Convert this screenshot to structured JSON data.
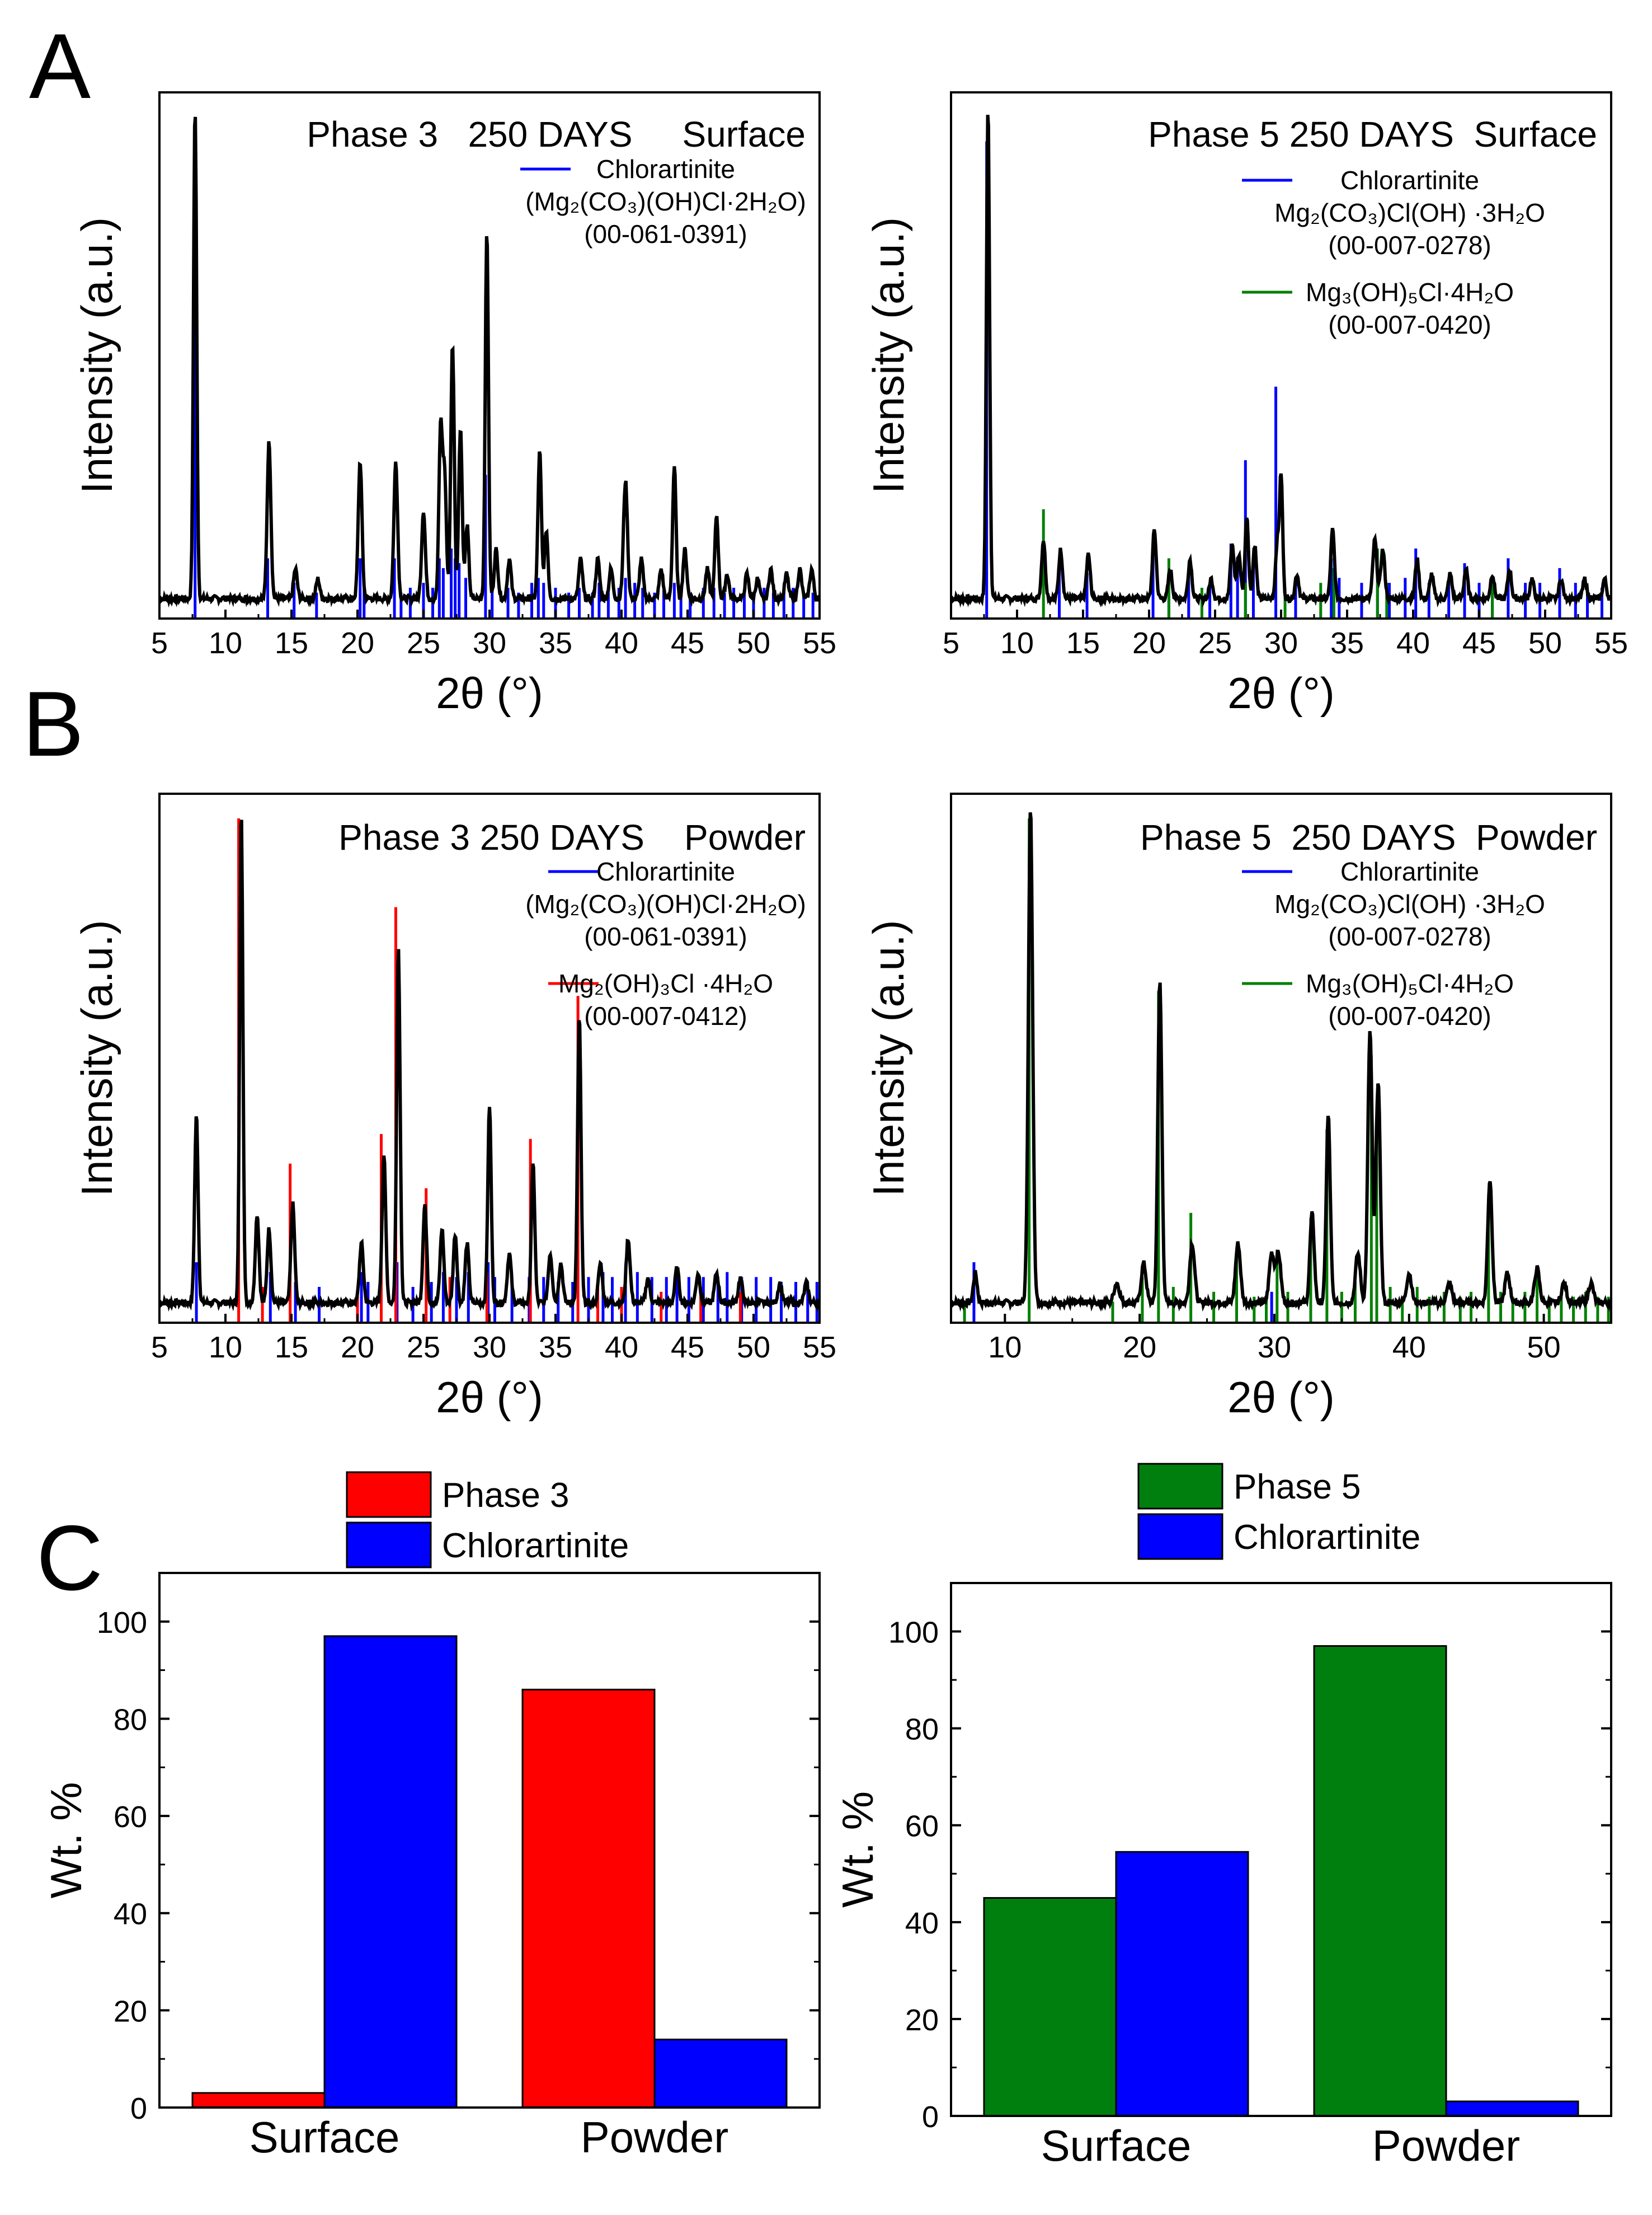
{
  "panel_letters": [
    "A",
    "B",
    "C"
  ],
  "colors": {
    "pattern": "#000000",
    "chlorartinite": "#0000ff",
    "phase3": "#ff0000",
    "phase5": "#008000",
    "bar_phase5": "#007f0e"
  },
  "chart_data": [
    {
      "id": "A-left",
      "type": "line",
      "title": "Phase 3   250 DAYS     Surface",
      "xlabel": "2θ (°)",
      "ylabel": "Intensity (a.u.)",
      "xlim": [
        5,
        55
      ],
      "ylim": [
        0,
        1.05
      ],
      "xticks": [
        5,
        10,
        15,
        20,
        25,
        30,
        35,
        40,
        45,
        50,
        55
      ],
      "legend": [
        {
          "name": "Chlorartinite",
          "lines": [
            "Chlorartinite",
            "(Mg₂(CO₃)(OH)Cl·2H₂O)",
            "(00-061-0391)"
          ],
          "color": "#0000ff"
        }
      ],
      "peaks": [
        [
          7.7,
          1.0,
          0.12
        ],
        [
          13.3,
          0.32,
          0.14
        ],
        [
          15.3,
          0.06,
          0.14
        ],
        [
          17.0,
          0.04,
          0.14
        ],
        [
          20.2,
          0.28,
          0.14
        ],
        [
          22.9,
          0.28,
          0.14
        ],
        [
          25.0,
          0.18,
          0.14
        ],
        [
          26.3,
          0.35,
          0.13
        ],
        [
          26.6,
          0.25,
          0.13
        ],
        [
          27.2,
          0.52,
          0.13
        ],
        [
          27.8,
          0.35,
          0.13
        ],
        [
          28.3,
          0.15,
          0.13
        ],
        [
          29.8,
          0.75,
          0.12
        ],
        [
          30.5,
          0.1,
          0.14
        ],
        [
          31.5,
          0.08,
          0.14
        ],
        [
          33.8,
          0.3,
          0.13
        ],
        [
          34.3,
          0.14,
          0.13
        ],
        [
          36.9,
          0.08,
          0.14
        ],
        [
          38.2,
          0.08,
          0.14
        ],
        [
          39.2,
          0.06,
          0.14
        ],
        [
          40.3,
          0.24,
          0.15
        ],
        [
          41.5,
          0.08,
          0.14
        ],
        [
          43.0,
          0.06,
          0.14
        ],
        [
          44.0,
          0.27,
          0.13
        ],
        [
          44.8,
          0.1,
          0.14
        ],
        [
          46.5,
          0.06,
          0.14
        ],
        [
          47.2,
          0.17,
          0.13
        ],
        [
          48.0,
          0.05,
          0.14
        ],
        [
          49.5,
          0.05,
          0.14
        ],
        [
          50.3,
          0.04,
          0.14
        ],
        [
          51.3,
          0.06,
          0.14
        ],
        [
          52.5,
          0.05,
          0.14
        ],
        [
          53.5,
          0.06,
          0.14
        ],
        [
          54.4,
          0.06,
          0.14
        ]
      ],
      "reference_lines": [
        {
          "name": "Chlorartinite",
          "color": "#0000ff",
          "x": [
            7.7,
            13.2,
            15.2,
            16.9,
            20.2,
            20.5,
            22.8,
            23.3,
            24.0,
            25.0,
            25.7,
            26.2,
            26.5,
            27.1,
            27.4,
            27.7,
            28.2,
            29.7,
            30.2,
            31.4,
            32.2,
            33.2,
            33.7,
            34.1,
            35.0,
            36.0,
            36.8,
            37.8,
            38.3,
            39.0,
            39.8,
            40.3,
            41.0,
            41.6,
            42.5,
            43.2,
            44.0,
            44.5,
            45.2,
            46.2,
            47.0,
            47.8,
            48.5,
            49.3,
            50.0,
            50.8,
            51.5,
            52.3,
            53.0,
            53.8,
            54.5
          ],
          "h": [
            1.0,
            0.1,
            0.05,
            0.03,
            0.1,
            0.05,
            0.1,
            0.03,
            0.04,
            0.05,
            0.04,
            0.1,
            0.08,
            0.12,
            0.1,
            0.09,
            0.06,
            0.27,
            0.06,
            0.04,
            0.03,
            0.05,
            0.06,
            0.05,
            0.04,
            0.03,
            0.04,
            0.03,
            0.05,
            0.04,
            0.04,
            0.06,
            0.05,
            0.04,
            0.03,
            0.04,
            0.05,
            0.04,
            0.03,
            0.04,
            0.04,
            0.03,
            0.04,
            0.03,
            0.03,
            0.04,
            0.03,
            0.03,
            0.04,
            0.03,
            0.03
          ]
        }
      ]
    },
    {
      "id": "A-right",
      "type": "line",
      "title": "Phase 5 250 DAYS  Surface",
      "xlabel": "2θ (°)",
      "ylabel": "Intensity (a.u.)",
      "xlim": [
        5,
        55
      ],
      "ylim": [
        0,
        1.05
      ],
      "xticks": [
        5,
        10,
        15,
        20,
        25,
        30,
        35,
        40,
        45,
        50,
        55
      ],
      "legend": [
        {
          "name": "Chlorartinite",
          "lines": [
            "Chlorartinite",
            "Mg₂(CO₃)Cl(OH) ·3H₂O",
            "(00-007-0278)"
          ],
          "color": "#0000ff"
        },
        {
          "name": "Mg3(OH)5Cl·4H2O",
          "lines": [
            "Mg₃(OH)₅Cl·4H₂O",
            "(00-007-0420)"
          ],
          "color": "#008000"
        }
      ],
      "peaks": [
        [
          7.8,
          1.0,
          0.12
        ],
        [
          12.0,
          0.12,
          0.14
        ],
        [
          13.3,
          0.1,
          0.14
        ],
        [
          15.4,
          0.09,
          0.14
        ],
        [
          20.4,
          0.14,
          0.14
        ],
        [
          21.6,
          0.06,
          0.14
        ],
        [
          23.1,
          0.08,
          0.14
        ],
        [
          24.7,
          0.04,
          0.14
        ],
        [
          26.3,
          0.11,
          0.14
        ],
        [
          26.8,
          0.09,
          0.14
        ],
        [
          27.4,
          0.17,
          0.13
        ],
        [
          28.0,
          0.11,
          0.13
        ],
        [
          29.7,
          0.11,
          0.13
        ],
        [
          30.0,
          0.25,
          0.12
        ],
        [
          31.2,
          0.05,
          0.14
        ],
        [
          33.9,
          0.14,
          0.14
        ],
        [
          37.1,
          0.12,
          0.15
        ],
        [
          37.7,
          0.1,
          0.15
        ],
        [
          40.3,
          0.08,
          0.14
        ],
        [
          41.4,
          0.05,
          0.14
        ],
        [
          42.8,
          0.05,
          0.14
        ],
        [
          44.0,
          0.06,
          0.14
        ],
        [
          46.0,
          0.05,
          0.14
        ],
        [
          47.3,
          0.06,
          0.14
        ],
        [
          49.0,
          0.04,
          0.14
        ],
        [
          51.2,
          0.04,
          0.14
        ],
        [
          53.0,
          0.04,
          0.14
        ],
        [
          54.5,
          0.04,
          0.14
        ]
      ],
      "reference_lines": [
        {
          "name": "Chlorartinite",
          "color": "#0000ff",
          "x": [
            7.7,
            13.2,
            15.3,
            20.3,
            21.5,
            23.0,
            24.6,
            26.2,
            26.7,
            27.3,
            27.9,
            29.6,
            31.1,
            33.8,
            34.4,
            36.1,
            37.3,
            38.2,
            39.4,
            40.2,
            41.2,
            42.7,
            43.9,
            45.0,
            46.0,
            47.2,
            48.5,
            49.6,
            51.1,
            52.3,
            53.2,
            54.3
          ],
          "h": [
            0.95,
            0.09,
            0.07,
            0.12,
            0.05,
            0.07,
            0.05,
            0.13,
            0.1,
            0.3,
            0.1,
            0.45,
            0.05,
            0.1,
            0.06,
            0.05,
            0.08,
            0.05,
            0.06,
            0.12,
            0.05,
            0.06,
            0.09,
            0.05,
            0.05,
            0.1,
            0.05,
            0.05,
            0.08,
            0.05,
            0.04,
            0.04
          ]
        },
        {
          "name": "Mg3(OH)5Cl·4H2O",
          "color": "#008000",
          "x": [
            12.0,
            21.5,
            24.0,
            27.3,
            30.3,
            33.0,
            34.0,
            37.3,
            38.0,
            46.0
          ],
          "h": [
            0.2,
            0.1,
            0.04,
            0.05,
            0.04,
            0.05,
            0.08,
            0.12,
            0.05,
            0.05
          ]
        }
      ]
    },
    {
      "id": "B-left",
      "type": "line",
      "title": "Phase 3 250 DAYS    Powder",
      "xlabel": "2θ (°)",
      "ylabel": "Intensity (a.u.)",
      "xlim": [
        5,
        55
      ],
      "ylim": [
        0,
        1.05
      ],
      "xticks": [
        5,
        10,
        15,
        20,
        25,
        30,
        35,
        40,
        45,
        50,
        55
      ],
      "legend": [
        {
          "name": "Chlorartinite",
          "lines": [
            "Chlorartinite",
            "(Mg₂(CO₃)(OH)Cl·2H₂O)",
            "(00-061-0391)"
          ],
          "color": "#0000ff"
        },
        {
          "name": "Mg2(OH)3Cl·4H2O",
          "lines": [
            "Mg₂(OH)₃Cl ·4H₂O",
            "(00-007-0412)"
          ],
          "color": "#ff0000"
        }
      ],
      "peaks": [
        [
          7.8,
          0.38,
          0.13
        ],
        [
          11.2,
          1.0,
          0.12
        ],
        [
          12.4,
          0.18,
          0.14
        ],
        [
          13.3,
          0.15,
          0.14
        ],
        [
          15.1,
          0.2,
          0.14
        ],
        [
          20.3,
          0.12,
          0.15
        ],
        [
          22.0,
          0.3,
          0.14
        ],
        [
          23.1,
          0.72,
          0.13
        ],
        [
          25.1,
          0.2,
          0.14
        ],
        [
          26.4,
          0.15,
          0.14
        ],
        [
          27.4,
          0.14,
          0.14
        ],
        [
          28.3,
          0.12,
          0.14
        ],
        [
          30.0,
          0.4,
          0.13
        ],
        [
          31.5,
          0.1,
          0.15
        ],
        [
          33.3,
          0.28,
          0.13
        ],
        [
          34.6,
          0.1,
          0.15
        ],
        [
          35.4,
          0.08,
          0.15
        ],
        [
          36.8,
          0.58,
          0.13
        ],
        [
          38.4,
          0.08,
          0.15
        ],
        [
          40.5,
          0.13,
          0.15
        ],
        [
          42.0,
          0.05,
          0.15
        ],
        [
          44.2,
          0.07,
          0.15
        ],
        [
          45.8,
          0.06,
          0.15
        ],
        [
          47.2,
          0.06,
          0.15
        ],
        [
          49.0,
          0.05,
          0.15
        ],
        [
          52.0,
          0.04,
          0.15
        ],
        [
          54.0,
          0.04,
          0.15
        ]
      ],
      "reference_lines": [
        {
          "name": "Chlorartinite",
          "color": "#0000ff",
          "x": [
            7.8,
            13.4,
            15.3,
            17.1,
            20.3,
            20.8,
            23.0,
            24.2,
            25.6,
            26.5,
            27.5,
            28.4,
            29.9,
            30.4,
            31.7,
            33.0,
            34.1,
            35.2,
            36.3,
            37.5,
            38.6,
            39.3,
            40.3,
            41.2,
            42.3,
            43.4,
            44.2,
            45.1,
            46.2,
            47.3,
            48.0,
            49.1,
            50.2,
            51.3,
            52.1,
            53.2,
            54.1,
            54.8
          ],
          "h": [
            0.1,
            0.08,
            0.06,
            0.05,
            0.08,
            0.06,
            0.1,
            0.05,
            0.06,
            0.08,
            0.07,
            0.08,
            0.1,
            0.07,
            0.06,
            0.07,
            0.07,
            0.06,
            0.06,
            0.07,
            0.08,
            0.07,
            0.08,
            0.08,
            0.07,
            0.07,
            0.08,
            0.07,
            0.07,
            0.07,
            0.08,
            0.07,
            0.07,
            0.07,
            0.06,
            0.06,
            0.06,
            0.06
          ]
        },
        {
          "name": "Mg2(OH)3Cl·4H2O",
          "color": "#ff0000",
          "x": [
            11.0,
            12.8,
            14.9,
            20.0,
            21.8,
            22.9,
            25.2,
            27.0,
            29.8,
            33.1,
            36.7,
            38.2,
            40.0,
            43.0,
            46.0,
            49.0
          ],
          "h": [
            1.0,
            0.05,
            0.3,
            0.04,
            0.36,
            0.82,
            0.25,
            0.07,
            0.08,
            0.35,
            0.64,
            0.05,
            0.05,
            0.04,
            0.05,
            0.04
          ]
        }
      ]
    },
    {
      "id": "B-right",
      "type": "line",
      "title": "Phase 5  250 DAYS  Powder",
      "xlabel": "2θ (°)",
      "ylabel": "Intensity (a.u.)",
      "xlim": [
        6,
        55
      ],
      "ylim": [
        0,
        1.05
      ],
      "xticks": [
        10,
        20,
        30,
        40,
        50
      ],
      "legend": [
        {
          "name": "Chlorartinite",
          "lines": [
            "Chlorartinite",
            "Mg₂(CO₃)Cl(OH) ·3H₂O",
            "(00-007-0278)"
          ],
          "color": "#0000ff"
        },
        {
          "name": "Mg3(OH)5Cl·4H2O",
          "lines": [
            "Mg₃(OH)₅Cl·4H₂O",
            "(00-007-0420)"
          ],
          "color": "#008000"
        }
      ],
      "peaks": [
        [
          7.8,
          0.06,
          0.14
        ],
        [
          11.9,
          1.0,
          0.16
        ],
        [
          18.3,
          0.04,
          0.2
        ],
        [
          20.3,
          0.08,
          0.18
        ],
        [
          21.5,
          0.65,
          0.15
        ],
        [
          23.9,
          0.12,
          0.18
        ],
        [
          27.3,
          0.12,
          0.18
        ],
        [
          29.8,
          0.1,
          0.18
        ],
        [
          30.3,
          0.1,
          0.18
        ],
        [
          32.8,
          0.18,
          0.16
        ],
        [
          34.0,
          0.38,
          0.15
        ],
        [
          36.2,
          0.1,
          0.18
        ],
        [
          37.1,
          0.55,
          0.16
        ],
        [
          37.7,
          0.45,
          0.16
        ],
        [
          40.0,
          0.06,
          0.18
        ],
        [
          43.0,
          0.04,
          0.18
        ],
        [
          46.0,
          0.25,
          0.16
        ],
        [
          47.3,
          0.06,
          0.18
        ],
        [
          49.5,
          0.07,
          0.18
        ],
        [
          51.5,
          0.04,
          0.18
        ],
        [
          53.5,
          0.04,
          0.18
        ]
      ],
      "reference_lines": [
        {
          "name": "Chlorartinite",
          "color": "#0000ff",
          "x": [
            7.7,
            29.8
          ],
          "h": [
            0.1,
            0.04
          ]
        },
        {
          "name": "Mg3(OH)5Cl·4H2O",
          "color": "#008000",
          "x": [
            7.0,
            11.8,
            18.0,
            20.2,
            21.4,
            22.5,
            23.8,
            25.5,
            27.2,
            28.5,
            29.4,
            30.2,
            31.0,
            32.7,
            33.9,
            35.0,
            36.0,
            37.2,
            37.6,
            38.6,
            39.5,
            40.6,
            41.5,
            42.6,
            43.8,
            44.6,
            45.9,
            46.8,
            47.7,
            48.6,
            49.5,
            50.4,
            51.3,
            52.2,
            53.1,
            54.0,
            54.8
          ],
          "h": [
            0.02,
            1.0,
            0.02,
            0.07,
            0.65,
            0.05,
            0.2,
            0.04,
            0.12,
            0.03,
            0.03,
            0.1,
            0.04,
            0.19,
            0.37,
            0.04,
            0.06,
            0.52,
            0.38,
            0.05,
            0.03,
            0.05,
            0.03,
            0.04,
            0.03,
            0.04,
            0.24,
            0.04,
            0.03,
            0.04,
            0.07,
            0.03,
            0.03,
            0.03,
            0.04,
            0.03,
            0.03
          ]
        }
      ]
    },
    {
      "id": "C-left",
      "type": "bar",
      "categories": [
        "Surface",
        "Powder"
      ],
      "series": [
        {
          "name": "Phase 3",
          "color": "#ff0000",
          "values": [
            3,
            86
          ]
        },
        {
          "name": "Chlorartinite",
          "color": "#0000ff",
          "values": [
            97,
            14
          ]
        }
      ],
      "ylabel": "Wt. %",
      "ylim": [
        0,
        110
      ],
      "yticks": [
        0,
        20,
        40,
        60,
        80,
        100
      ]
    },
    {
      "id": "C-right",
      "type": "bar",
      "categories": [
        "Surface",
        "Powder"
      ],
      "series": [
        {
          "name": "Phase 5",
          "color": "#007f0e",
          "values": [
            45,
            97
          ]
        },
        {
          "name": "Chlorartinite",
          "color": "#0000ff",
          "values": [
            54.5,
            3
          ]
        }
      ],
      "ylabel": "Wt. %",
      "ylim": [
        0,
        110
      ],
      "yticks": [
        0,
        20,
        40,
        60,
        80,
        100
      ]
    }
  ]
}
